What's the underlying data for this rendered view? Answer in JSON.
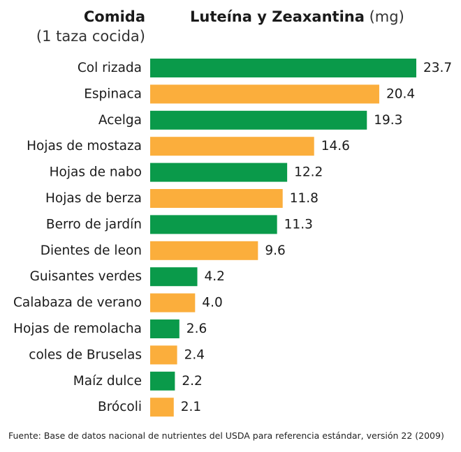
{
  "header": {
    "left_title": "Comida",
    "left_subtitle": "(1 taza cocida)",
    "right_title": "Luteína y Zeaxantina",
    "right_unit": "(mg)"
  },
  "colors": {
    "green": "#0a9a4a",
    "orange": "#fbae3c"
  },
  "chart_data": {
    "type": "bar",
    "orientation": "horizontal",
    "title": "Luteína y Zeaxantina (mg)",
    "ylabel": "Comida (1 taza cocida)",
    "xlabel": "",
    "xlim": [
      0,
      23.7
    ],
    "grid": false,
    "categories": [
      "Col rizada",
      "Espinaca",
      "Acelga",
      "Hojas de mostaza",
      "Hojas de nabo",
      "Hojas de berza",
      "Berro de jardín",
      "Dientes de leon",
      "Guisantes verdes",
      "Calabaza de verano",
      "Hojas de remolacha",
      "coles de Bruselas",
      "Maíz dulce",
      "Brócoli"
    ],
    "values": [
      23.7,
      20.4,
      19.3,
      14.6,
      12.2,
      11.8,
      11.3,
      9.6,
      4.2,
      4.0,
      2.6,
      2.4,
      2.2,
      2.1
    ],
    "value_labels": [
      "23.7",
      "20.4",
      "19.3",
      "14.6",
      "12.2",
      "11.8",
      "11.3",
      "9.6",
      "4.2",
      "4.0",
      "2.6",
      "2.4",
      "2.2",
      "2.1"
    ],
    "bar_colors": [
      "green",
      "orange",
      "green",
      "orange",
      "green",
      "orange",
      "green",
      "orange",
      "green",
      "orange",
      "green",
      "orange",
      "green",
      "orange"
    ]
  },
  "footer": {
    "source": "Fuente: Base de datos nacional de nutrientes del USDA para referencia estándar, versión 22 (2009)"
  }
}
